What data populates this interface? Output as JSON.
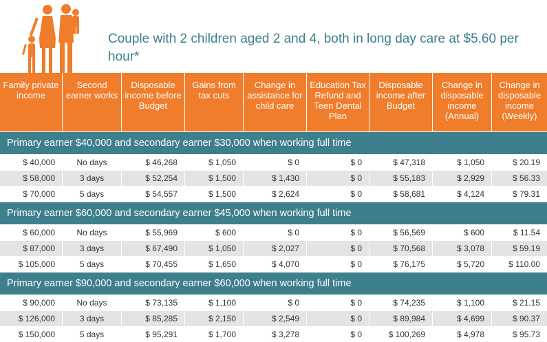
{
  "title": "Couple with 2 children aged 2 and 4, both in long day care at $5.60 per hour*",
  "colors": {
    "orange": "#f07d2c",
    "teal": "#3d7f8c",
    "shade": "#e4e4e4"
  },
  "icon": "family-silhouette-icon",
  "headers": [
    "Family private income",
    "Second earner works",
    "Disposable income before Budget",
    "Gains from tax cuts",
    "Change in assistance for child care",
    "Education Tax Refund and Teen Dental Plan",
    "Disposable income after Budget",
    "Change in disposable income (Annual)",
    "Change in disposable income (Weekly)"
  ],
  "groups": [
    {
      "label": "Primary earner $40,000 and secondary earner $30,000 when working full time",
      "rows": [
        [
          "$ 40,000",
          "No days",
          "$ 46,268",
          "$ 1,050",
          "$ 0",
          "$ 0",
          "$ 47,318",
          "$ 1,050",
          "$ 20.19"
        ],
        [
          "$ 58,000",
          "3 days",
          "$ 52,254",
          "$ 1,500",
          "$ 1,430",
          "$ 0",
          "$ 55,183",
          "$ 2,929",
          "$ 56.33"
        ],
        [
          "$ 70,000",
          "5 days",
          "$ 54,557",
          "$ 1,500",
          "$ 2,624",
          "$ 0",
          "$ 58,681",
          "$ 4,124",
          "$ 79.31"
        ]
      ]
    },
    {
      "label": "Primary earner $60,000 and secondary earner $45,000 when working full time",
      "rows": [
        [
          "$ 60,000",
          "No days",
          "$ 55,969",
          "$ 600",
          "$ 0",
          "$ 0",
          "$ 56,569",
          "$ 600",
          "$ 11.54"
        ],
        [
          "$ 87,000",
          "3 days",
          "$ 67,490",
          "$ 1,050",
          "$ 2,027",
          "$ 0",
          "$ 70,568",
          "$ 3,078",
          "$ 59.19"
        ],
        [
          "$ 105,000",
          "5 days",
          "$ 70,455",
          "$ 1,650",
          "$ 4,070",
          "$ 0",
          "$ 76,175",
          "$ 5,720",
          "$ 110.00"
        ]
      ]
    },
    {
      "label": "Primary earner $90,000 and secondary earner $60,000 when working full time",
      "rows": [
        [
          "$ 90,000",
          "No days",
          "$ 73,135",
          "$ 1,100",
          "$ 0",
          "$ 0",
          "$ 74,235",
          "$ 1,100",
          "$ 21.15"
        ],
        [
          "$ 126,000",
          "3 days",
          "$ 85,285",
          "$ 2,150",
          "$ 2,549",
          "$ 0",
          "$ 89,984",
          "$ 4,699",
          "$ 90.37"
        ],
        [
          "$ 150,000",
          "5 days",
          "$ 95,291",
          "$ 1,700",
          "$ 3,278",
          "$ 0",
          "$ 100,269",
          "$ 4,978",
          "$ 95.73"
        ]
      ]
    }
  ]
}
